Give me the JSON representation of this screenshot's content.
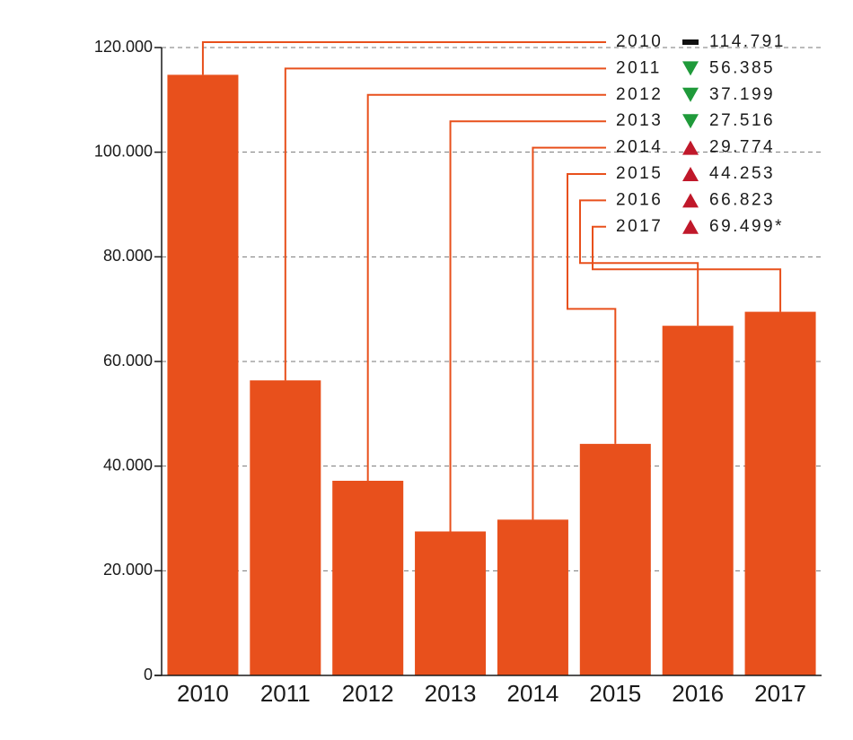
{
  "chart_data": {
    "type": "bar",
    "categories": [
      "2010",
      "2011",
      "2012",
      "2013",
      "2014",
      "2015",
      "2016",
      "2017"
    ],
    "values": [
      114791,
      56385,
      37199,
      27516,
      29774,
      44253,
      66823,
      69499
    ],
    "value_labels": [
      "114.791",
      "56.385",
      "37.199",
      "27.516",
      "29.774",
      "44.253",
      "66.823",
      "69.499*"
    ],
    "color": "#e8501c",
    "ylim": [
      0,
      120000
    ],
    "yticks": [
      0,
      {
        "value": 20000,
        "label": "20.000"
      },
      {
        "value": 40000,
        "label": "40.000"
      },
      {
        "value": 60000,
        "label": "60.000"
      },
      {
        "value": 80000,
        "label": "80.000"
      },
      {
        "value": 100000,
        "label": "100.000"
      },
      {
        "value": 120000,
        "label": "120.000"
      }
    ],
    "grid": true,
    "trend_colors": {
      "up": "#c0182a",
      "down": "#1f9a3a",
      "flat": "#111111"
    }
  }
}
